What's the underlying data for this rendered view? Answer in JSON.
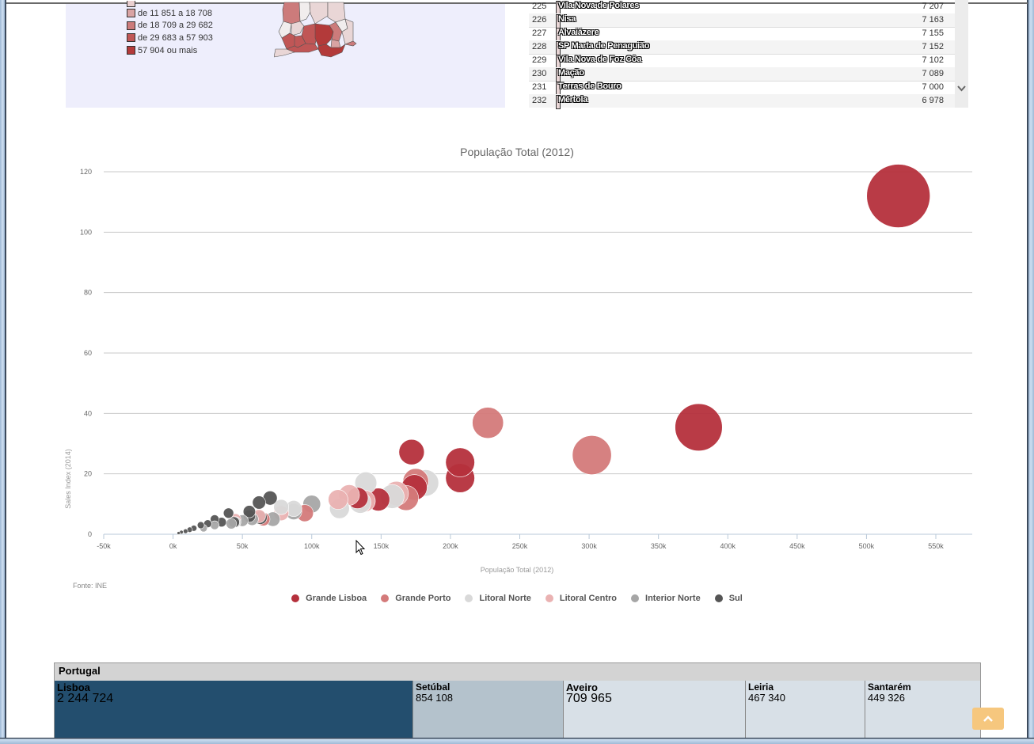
{
  "map_panel": {
    "legend": [
      {
        "label": "de 11 851 a 18 708",
        "color": "#d9a3a3"
      },
      {
        "label": "de 18 709 a 29 682",
        "color": "#cc7b7b"
      },
      {
        "label": "de 29 683 a 57 903",
        "color": "#c05656"
      },
      {
        "label": "57 904 ou mais",
        "color": "#b33a3a"
      }
    ]
  },
  "ranking_table": {
    "rows": [
      {
        "rank": "225",
        "name": "Vila Nova de Poiares",
        "value": "7 207"
      },
      {
        "rank": "226",
        "name": "Nisa",
        "value": "7 163"
      },
      {
        "rank": "227",
        "name": "Alvaiázere",
        "value": "7 155"
      },
      {
        "rank": "228",
        "name": "SP Marta de Penaguião",
        "value": "7 152"
      },
      {
        "rank": "229",
        "name": "Vila Nova de Foz Côa",
        "value": "7 102"
      },
      {
        "rank": "230",
        "name": "Mação",
        "value": "7 089"
      },
      {
        "rank": "231",
        "name": "Terras de Bouro",
        "value": "7 000"
      },
      {
        "rank": "232",
        "name": "Mértola",
        "value": "6 978"
      }
    ],
    "scroll_icon": "chevron-down-icon"
  },
  "chart_data": {
    "type": "scatter",
    "title": "População Total (2012)",
    "xlabel": "População Total (2012)",
    "ylabel": "Sales Index (2014)",
    "source": "Fonte: INE",
    "xlim": [
      -50000,
      580000
    ],
    "ylim": [
      0,
      120
    ],
    "x_ticks": [
      "-50k",
      "0k",
      "50k",
      "100k",
      "150k",
      "200k",
      "250k",
      "300k",
      "350k",
      "400k",
      "450k",
      "500k",
      "550k"
    ],
    "x_tick_values": [
      -50000,
      0,
      50000,
      100000,
      150000,
      200000,
      250000,
      300000,
      350000,
      400000,
      450000,
      500000,
      550000
    ],
    "y_ticks": [
      "0",
      "20",
      "40",
      "60",
      "80",
      "100",
      "120"
    ],
    "y_tick_values": [
      0,
      20,
      40,
      60,
      80,
      100,
      120
    ],
    "grid": true,
    "legend_position": "bottom",
    "series": [
      {
        "name": "Grande Lisboa",
        "color": "#b5303c",
        "points": [
          {
            "x": 523000,
            "y": 112,
            "size": 523000
          },
          {
            "x": 379000,
            "y": 35.4,
            "size": 379000
          },
          {
            "x": 207000,
            "y": 23.8,
            "size": 207000
          },
          {
            "x": 207000,
            "y": 18.6,
            "size": 207000
          },
          {
            "x": 172000,
            "y": 27.2,
            "size": 172000
          },
          {
            "x": 174000,
            "y": 15.5,
            "size": 174000
          },
          {
            "x": 148000,
            "y": 11.5,
            "size": 148000
          },
          {
            "x": 133000,
            "y": 12,
            "size": 133000
          }
        ]
      },
      {
        "name": "Grande Porto",
        "color": "#d47a7a",
        "points": [
          {
            "x": 302000,
            "y": 26.2,
            "size": 302000
          },
          {
            "x": 227000,
            "y": 36.9,
            "size": 227000
          },
          {
            "x": 175000,
            "y": 17.5,
            "size": 175000
          },
          {
            "x": 168000,
            "y": 12,
            "size": 168000
          },
          {
            "x": 95000,
            "y": 7,
            "size": 95000
          },
          {
            "x": 65000,
            "y": 5,
            "size": 65000
          }
        ]
      },
      {
        "name": "Litoral Norte",
        "color": "#d9d9d9",
        "points": [
          {
            "x": 182000,
            "y": 17,
            "size": 182000
          },
          {
            "x": 139000,
            "y": 17,
            "size": 139000
          },
          {
            "x": 158000,
            "y": 12.5,
            "size": 158000
          },
          {
            "x": 120000,
            "y": 8.5,
            "size": 120000
          },
          {
            "x": 135000,
            "y": 10.5,
            "size": 135000
          },
          {
            "x": 87000,
            "y": 8.5,
            "size": 87000
          },
          {
            "x": 78000,
            "y": 9,
            "size": 78000
          },
          {
            "x": 45000,
            "y": 4,
            "size": 45000
          }
        ]
      },
      {
        "name": "Litoral Centro",
        "color": "#eab2b2",
        "points": [
          {
            "x": 161000,
            "y": 13.5,
            "size": 161000
          },
          {
            "x": 138000,
            "y": 11,
            "size": 138000
          },
          {
            "x": 127000,
            "y": 13,
            "size": 127000
          },
          {
            "x": 119000,
            "y": 11.5,
            "size": 119000
          },
          {
            "x": 78000,
            "y": 7,
            "size": 78000
          },
          {
            "x": 62000,
            "y": 6,
            "size": 62000
          },
          {
            "x": 45000,
            "y": 5,
            "size": 45000
          }
        ]
      },
      {
        "name": "Interior Norte",
        "color": "#a6a6a6",
        "points": [
          {
            "x": 100000,
            "y": 10,
            "size": 100000
          },
          {
            "x": 87000,
            "y": 7.5,
            "size": 87000
          },
          {
            "x": 72000,
            "y": 5,
            "size": 72000
          },
          {
            "x": 57000,
            "y": 5,
            "size": 57000
          },
          {
            "x": 50000,
            "y": 4.5,
            "size": 50000
          },
          {
            "x": 42000,
            "y": 3.5,
            "size": 42000
          },
          {
            "x": 30000,
            "y": 3,
            "size": 30000
          },
          {
            "x": 22000,
            "y": 2,
            "size": 22000
          }
        ]
      },
      {
        "name": "Sul",
        "color": "#555555",
        "points": [
          {
            "x": 70000,
            "y": 12,
            "size": 70000
          },
          {
            "x": 62000,
            "y": 10.5,
            "size": 62000
          },
          {
            "x": 55000,
            "y": 7.5,
            "size": 55000
          },
          {
            "x": 63000,
            "y": 5.5,
            "size": 63000
          },
          {
            "x": 55000,
            "y": 6,
            "size": 55000
          },
          {
            "x": 40000,
            "y": 7,
            "size": 40000
          },
          {
            "x": 44000,
            "y": 4,
            "size": 44000
          },
          {
            "x": 35000,
            "y": 4,
            "size": 35000
          },
          {
            "x": 30000,
            "y": 5,
            "size": 30000
          },
          {
            "x": 25000,
            "y": 3.5,
            "size": 25000
          },
          {
            "x": 20000,
            "y": 3,
            "size": 20000
          },
          {
            "x": 15000,
            "y": 2,
            "size": 15000
          },
          {
            "x": 12000,
            "y": 1.5,
            "size": 12000
          },
          {
            "x": 9000,
            "y": 1,
            "size": 9000
          },
          {
            "x": 6000,
            "y": 0.7,
            "size": 6000
          },
          {
            "x": 4000,
            "y": 0.4,
            "size": 4000
          }
        ]
      }
    ]
  },
  "treemap": {
    "root": "Portugal",
    "cells": [
      {
        "name": "Lisboa",
        "value": "2 244 724",
        "color": "#234e6e",
        "text_color": "#000000"
      },
      {
        "name": "Setúbal",
        "value": "854 108",
        "color": "#b4c2cc",
        "text_color": "#000000"
      },
      {
        "name": "Aveiro",
        "value": "709 965",
        "color": "#d8e0e7",
        "text_color": "#000000"
      },
      {
        "name": "Leiria",
        "value": "467 340",
        "color": "#d8e0e7",
        "text_color": "#000000"
      },
      {
        "name": "Santarém",
        "value": "449 326",
        "color": "#d8e0e7",
        "text_color": "#000000"
      }
    ]
  },
  "scroll_top_button": {
    "icon": "chevron-up-icon",
    "color": "#f6c77e"
  }
}
